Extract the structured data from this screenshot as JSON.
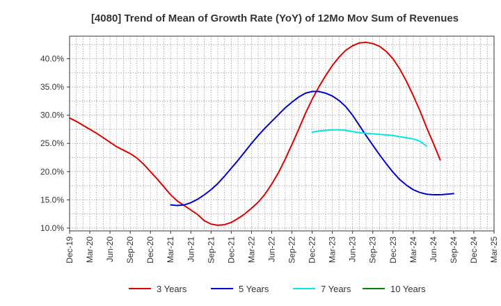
{
  "chart_data": {
    "type": "line",
    "title": "[4080]  Trend of Mean of Growth Rate (YoY) of 12Mo Mov Sum of Revenues",
    "xlabel": "",
    "ylabel": "",
    "x_ticks": [
      "Dec-19",
      "Mar-20",
      "Jun-20",
      "Sep-20",
      "Dec-20",
      "Mar-21",
      "Jun-21",
      "Sep-21",
      "Dec-21",
      "Mar-22",
      "Jun-22",
      "Sep-22",
      "Dec-22",
      "Mar-23",
      "Jun-23",
      "Sep-23",
      "Dec-23",
      "Mar-24",
      "Jun-24",
      "Sep-24",
      "Dec-24",
      "Mar-25"
    ],
    "y_ticks": [
      "10.0%",
      "15.0%",
      "20.0%",
      "25.0%",
      "30.0%",
      "35.0%",
      "40.0%"
    ],
    "ylim": [
      9.5,
      44.0
    ],
    "grid": true,
    "legend_position": "bottom",
    "series": [
      {
        "name": "3 Years",
        "color": "#dd0000",
        "start_index": 0,
        "values": [
          29.5,
          28.9,
          28.2,
          27.5,
          26.8,
          26.0,
          25.2,
          24.4,
          23.8,
          23.2,
          22.4,
          21.3,
          20.0,
          18.7,
          17.3,
          15.9,
          14.8,
          14.0,
          13.2,
          12.4,
          11.3,
          10.7,
          10.5,
          10.6,
          11.0,
          11.7,
          12.5,
          13.5,
          14.6,
          16.0,
          17.8,
          19.8,
          22.2,
          24.8,
          27.5,
          30.3,
          32.8,
          35.0,
          37.0,
          38.8,
          40.3,
          41.5,
          42.3,
          42.8,
          42.9,
          42.7,
          42.2,
          41.3,
          40.0,
          38.2,
          36.0,
          33.5,
          30.8,
          27.8,
          25.0,
          22.1
        ]
      },
      {
        "name": "5 Years",
        "color": "#0000cc",
        "start_index": 15,
        "values": [
          14.1,
          14.0,
          14.1,
          14.5,
          15.1,
          15.9,
          16.8,
          17.9,
          19.2,
          20.6,
          22.0,
          23.5,
          25.0,
          26.4,
          27.7,
          28.9,
          30.1,
          31.3,
          32.3,
          33.2,
          33.9,
          34.2,
          34.2,
          33.9,
          33.4,
          32.6,
          31.5,
          30.0,
          28.2,
          26.4,
          24.7,
          23.0,
          21.4,
          19.9,
          18.6,
          17.6,
          16.8,
          16.3,
          16.0,
          15.9,
          15.9,
          16.0,
          16.1
        ]
      },
      {
        "name": "7 Years",
        "color": "#00e5e5",
        "start_index": 36,
        "values": [
          27.0,
          27.2,
          27.3,
          27.4,
          27.4,
          27.3,
          27.1,
          26.9,
          26.8,
          26.7,
          26.6,
          26.5,
          26.4,
          26.2,
          26.0,
          25.8,
          25.4,
          24.5
        ]
      },
      {
        "name": "10 Years",
        "color": "#008000",
        "start_index": 0,
        "values": []
      }
    ]
  }
}
